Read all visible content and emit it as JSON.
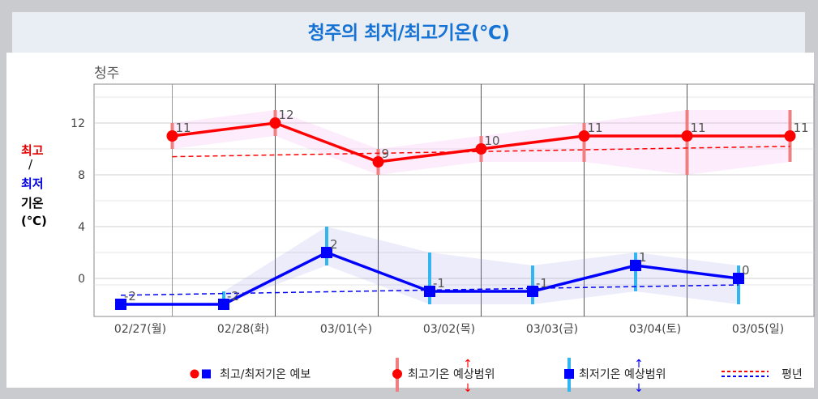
{
  "header": {
    "title": "청주의 최저/최고기온(℃)"
  },
  "ylabel_parts": {
    "hi": "최고",
    "sep": "/",
    "lo": "최저",
    "line3": "기온",
    "unit": "(℃)"
  },
  "colors": {
    "max": "#ff0000",
    "min": "#0000ff",
    "max_range": "#f08080",
    "min_range": "#33b5f0",
    "title": "#1673d6"
  },
  "legend": {
    "forecast_label": "최고/최저기온 예보",
    "max_range_label": "최고기온 예상범위",
    "min_range_label": "최저기온 예상범위",
    "normal_label": "평년"
  },
  "chart_data": {
    "type": "line",
    "title": "청주",
    "ylabel": "최고/최저 기온 (℃)",
    "ylim": [
      -3,
      14
    ],
    "yticks": [
      0,
      4,
      8,
      12
    ],
    "categories": [
      "02/27(월)",
      "02/28(화)",
      "03/01(수)",
      "03/02(목)",
      "03/03(금)",
      "03/04(토)",
      "03/05(일)"
    ],
    "grid": true,
    "legend_position": "bottom",
    "series": [
      {
        "name": "최고기온 예보",
        "x": [
          0.5,
          1.5,
          2.5,
          3.5,
          4.5,
          5.5,
          6.5
        ],
        "values": [
          11,
          12,
          9,
          10,
          11,
          11,
          11
        ],
        "labels": [
          "11",
          "12",
          "9",
          "10",
          "11",
          "11",
          "11"
        ]
      },
      {
        "name": "최저기온 예보",
        "x": [
          0,
          1,
          2,
          3,
          4,
          5,
          6
        ],
        "values": [
          -2,
          -2,
          2,
          -1,
          -1,
          1,
          0
        ],
        "labels": [
          "-2",
          "-2",
          "2",
          "-1",
          "-1",
          "1",
          "0"
        ]
      }
    ],
    "max_range": {
      "x": [
        0.5,
        1.5,
        2.5,
        3.5,
        4.5,
        5.5,
        6.5
      ],
      "low": [
        10,
        11,
        8,
        9,
        9,
        8,
        9
      ],
      "high": [
        12,
        13,
        10,
        11,
        12,
        13,
        13
      ]
    },
    "min_range": {
      "x": [
        1,
        2,
        3,
        4,
        5,
        6
      ],
      "low": [
        -2,
        1,
        -2,
        -2,
        -1,
        -2
      ],
      "high": [
        -1,
        4,
        2,
        1,
        2,
        1
      ]
    },
    "normal_max": {
      "x": [
        0.5,
        6.5
      ],
      "values": [
        9.4,
        10.2
      ]
    },
    "normal_min": {
      "x": [
        0,
        6
      ],
      "values": [
        -1.3,
        -0.5
      ]
    }
  }
}
